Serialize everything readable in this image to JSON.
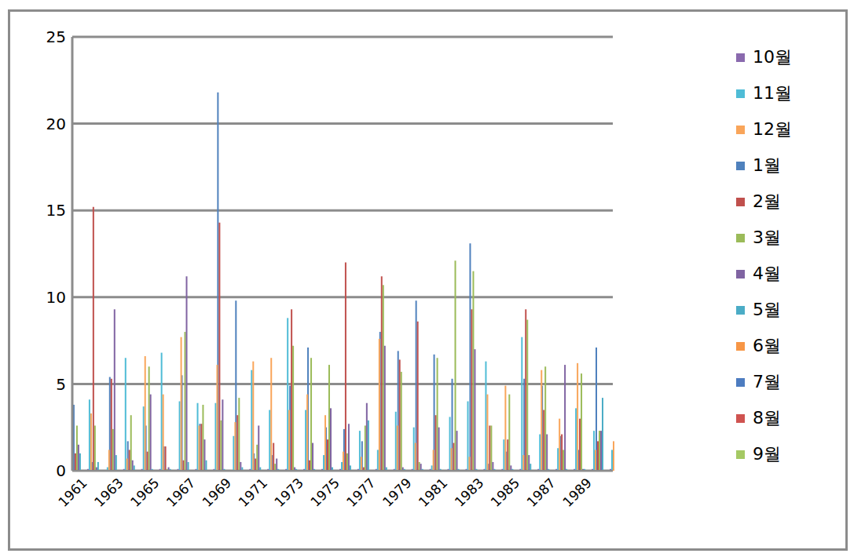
{
  "chart_data": {
    "type": "bar",
    "categories": [
      "1961",
      null,
      "1963",
      null,
      "1965",
      null,
      "1967",
      null,
      "1969",
      null,
      "1971",
      null,
      "1973",
      null,
      "1975",
      null,
      "1977",
      null,
      "1979",
      null,
      "1981",
      null,
      "1983",
      null,
      "1985",
      null,
      "1987",
      null,
      "1989",
      null
    ],
    "series": [
      {
        "name": "1월",
        "color": "#4f81bd",
        "values": [
          3.8,
          0.5,
          5.4,
          1.7,
          2.6,
          1.4,
          5.5,
          2.7,
          21.8,
          9.8,
          1.0,
          0.9,
          4.9,
          7.1,
          2.5,
          2.4,
          1.7,
          8.0,
          6.9,
          9.8,
          6.7,
          5.3,
          13.1,
          0.4,
          1.1,
          5.3,
          4.9,
          2.0,
          1.2,
          7.1
        ]
      },
      {
        "name": "2월",
        "color": "#c0504d",
        "values": [
          1.0,
          15.2,
          5.3,
          1.2,
          1.1,
          1.4,
          0.6,
          2.7,
          14.3,
          3.2,
          0.7,
          1.6,
          9.3,
          0.6,
          1.8,
          12.0,
          0.2,
          11.2,
          6.4,
          8.6,
          3.2,
          1.6,
          9.3,
          2.6,
          1.8,
          9.3,
          3.5,
          2.1,
          3.0,
          1.7
        ]
      },
      {
        "name": "3월",
        "color": "#9bbb59",
        "values": [
          2.6,
          2.6,
          2.4,
          3.2,
          6.0,
          0.1,
          8.0,
          3.8,
          2.9,
          4.2,
          1.5,
          0.4,
          7.2,
          6.5,
          6.1,
          1.0,
          2.6,
          10.7,
          5.7,
          0.5,
          6.5,
          12.1,
          11.5,
          2.6,
          4.4,
          8.7,
          6.0,
          1.2,
          5.6,
          2.3
        ]
      },
      {
        "name": "4월",
        "color": "#8064a2",
        "values": [
          1.5,
          0.2,
          9.3,
          0.6,
          4.4,
          0.2,
          11.2,
          1.8,
          4.1,
          0.5,
          2.6,
          0.7,
          0.2,
          1.6,
          3.6,
          2.7,
          3.9,
          7.2,
          0.2,
          0.4,
          2.5,
          2.3,
          7.0,
          0.5,
          0.3,
          0.9,
          2.1,
          6.1,
          0.1,
          2.3
        ]
      },
      {
        "name": "5월",
        "color": "#4bacc6",
        "values": [
          1.0,
          0.5,
          0.9,
          0.3,
          0.1,
          0.1,
          0.5,
          0.6,
          0.1,
          0.2,
          0.2,
          0.1,
          0.1,
          0.1,
          0.2,
          0.3,
          2.9,
          0.2,
          0.1,
          0.1,
          0.1,
          0.1,
          0.1,
          0.1,
          0.1,
          0.4,
          0.1,
          0.1,
          0.1,
          4.2
        ]
      },
      {
        "name": "6월",
        "color": "#f79646",
        "values": [
          0,
          0,
          0,
          0,
          0,
          0,
          0,
          0,
          0,
          0,
          0,
          0,
          0,
          0,
          0,
          0,
          0,
          0,
          0,
          0,
          0,
          0,
          0,
          0,
          0,
          0,
          0,
          0,
          0,
          0
        ]
      },
      {
        "name": "7월",
        "color": "#4d7cc0",
        "values": [
          0,
          0,
          0,
          0,
          0,
          0,
          0,
          0,
          0,
          0,
          0,
          0,
          0,
          0,
          0,
          0,
          0,
          0,
          0,
          0,
          0,
          0,
          0,
          0,
          0,
          0,
          0,
          0,
          0,
          0
        ]
      },
      {
        "name": "8월",
        "color": "#cf5350",
        "values": [
          0,
          0,
          0,
          0,
          0,
          0,
          0,
          0,
          0,
          0,
          0,
          0,
          0,
          0,
          0,
          0,
          0,
          0,
          0,
          0,
          0,
          0,
          0,
          0,
          0,
          0,
          0,
          0,
          0,
          0
        ]
      },
      {
        "name": "9월",
        "color": "#a5c964",
        "values": [
          0,
          0,
          0,
          0,
          0,
          0,
          0,
          0,
          0,
          0,
          0,
          0,
          0,
          0,
          0,
          0,
          0,
          0,
          0,
          0,
          0,
          0,
          0,
          0,
          0,
          0,
          0,
          0,
          0,
          0
        ]
      },
      {
        "name": "10월",
        "color": "#8a6aae",
        "values": [
          0.1,
          0,
          0.1,
          0.1,
          0.1,
          0.1,
          0.1,
          0.1,
          0,
          0.1,
          0.1,
          0.1,
          0.1,
          0.1,
          0.1,
          0.1,
          0.1,
          0.1,
          0.1,
          0.1,
          0.1,
          0.1,
          0.1,
          0.1,
          0.1,
          0.1,
          0.1,
          0.1,
          0.1,
          0.1
        ]
      },
      {
        "name": "11월",
        "color": "#4fbcd6",
        "values": [
          4.1,
          0.2,
          6.5,
          3.7,
          6.8,
          4.0,
          3.9,
          3.9,
          2.0,
          5.8,
          3.5,
          8.8,
          3.5,
          0.9,
          0.5,
          2.3,
          1.2,
          3.4,
          2.5,
          0.3,
          3.1,
          4.0,
          6.3,
          1.8,
          7.7,
          2.1,
          1.3,
          3.6,
          2.3,
          1.2
        ]
      },
      {
        "name": "12월",
        "color": "#f9a55a",
        "values": [
          3.3,
          1.2,
          0.7,
          6.6,
          4.4,
          7.7,
          2.6,
          6.1,
          2.8,
          6.3,
          6.5,
          3.5,
          4.4,
          3.2,
          1.1,
          0.8,
          7.6,
          2.6,
          1.6,
          1.2,
          1.3,
          0.8,
          4.4,
          4.9,
          0.9,
          5.8,
          3.0,
          6.2,
          1.2,
          1.7
        ]
      }
    ],
    "ylim": [
      0,
      25
    ],
    "yticks": [
      0,
      5,
      10,
      15,
      20,
      25
    ],
    "grid": true,
    "legend": "right"
  }
}
